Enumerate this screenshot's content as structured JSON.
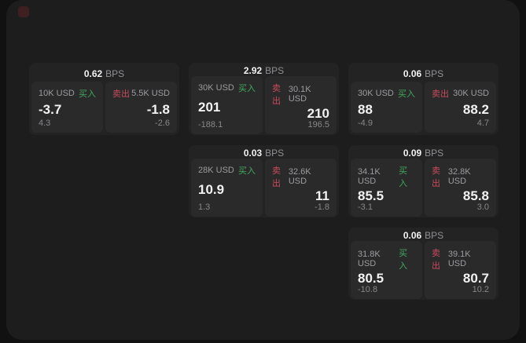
{
  "page": {
    "background": "#111112",
    "panel_background": "#1d1d1e",
    "card_background": "#232324",
    "subcard_background": "#2a2a2b"
  },
  "colors": {
    "buy_green": "#42a85d",
    "sell_red": "#c94a5d",
    "value_white": "#f2f2f3",
    "label_gray": "#9c9ca0"
  },
  "labels": {
    "buy": "买入",
    "sell": "卖出",
    "bps_unit": "BPS"
  },
  "cards": [
    {
      "col": 1,
      "row": 1,
      "bps": "0.62",
      "buy": {
        "size": "10K USD",
        "value": "-3.7",
        "sub": "4.3"
      },
      "sell": {
        "size": "5.5K USD",
        "value": "-1.8",
        "sub": "-2.6"
      }
    },
    {
      "col": 2,
      "row": 1,
      "bps": "2.92",
      "buy": {
        "size": "30K USD",
        "value": "201",
        "sub": "-188.1"
      },
      "sell": {
        "size": "30.1K USD",
        "value": "210",
        "sub": "196.5"
      }
    },
    {
      "col": 3,
      "row": 1,
      "bps": "0.06",
      "buy": {
        "size": "30K USD",
        "value": "88",
        "sub": "-4.9"
      },
      "sell": {
        "size": "30K USD",
        "value": "88.2",
        "sub": "4.7"
      }
    },
    {
      "col": 2,
      "row": 2,
      "bps": "0.03",
      "buy": {
        "size": "28K USD",
        "value": "10.9",
        "sub": "1.3"
      },
      "sell": {
        "size": "32.6K USD",
        "value": "11",
        "sub": "-1.8"
      }
    },
    {
      "col": 3,
      "row": 2,
      "bps": "0.09",
      "buy": {
        "size": "34.1K USD",
        "value": "85.5",
        "sub": "-3.1"
      },
      "sell": {
        "size": "32.8K USD",
        "value": "85.8",
        "sub": "3.0"
      }
    },
    {
      "col": 3,
      "row": 3,
      "bps": "0.06",
      "buy": {
        "size": "31.8K USD",
        "value": "80.5",
        "sub": "-10.8"
      },
      "sell": {
        "size": "39.1K USD",
        "value": "80.7",
        "sub": "10.2"
      }
    }
  ]
}
